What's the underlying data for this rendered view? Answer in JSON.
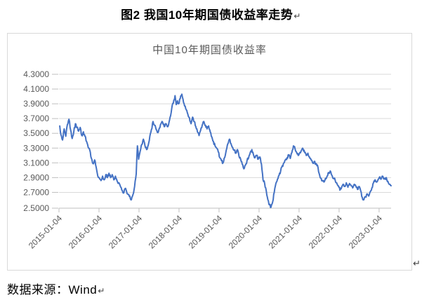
{
  "page": {
    "title": "图2 我国10年期国债收益率走势",
    "paragraph_mark": "↵",
    "source_label": "数据来源：Wind"
  },
  "chart_style": {
    "line_color": "#4472C4",
    "grid_color": "#D9D9D9",
    "axis_color": "#BFBFBF",
    "tick_label_color": "#595959",
    "title_color": "#595959",
    "frame_border_color": "#D9D9D9"
  },
  "chart_data": {
    "type": "line",
    "title": "中国10年期国债收益率",
    "legend": "none",
    "grid": true,
    "ylim": [
      2.5,
      4.3
    ],
    "xlim_years": [
      2015.0,
      2023.3
    ],
    "y_ticks": [
      4.3,
      4.1,
      3.9,
      3.7,
      3.5,
      3.3,
      3.1,
      2.9,
      2.7,
      2.5
    ],
    "y_tick_labels": [
      "4.3000",
      "4.1000",
      "3.9000",
      "3.7000",
      "3.5000",
      "3.3000",
      "3.1000",
      "2.9000",
      "2.7000",
      "2.5000"
    ],
    "x_tick_years": [
      2015,
      2016,
      2017,
      2018,
      2019,
      2020,
      2021,
      2022,
      2023
    ],
    "x_tick_labels": [
      "2015-01-04",
      "2016-01-04",
      "2017-01-04",
      "2018-01-04",
      "2019-01-04",
      "2020-01-04",
      "2021-01-04",
      "2022-01-04",
      "2023-01-04"
    ],
    "noise_amplitude": 0.04,
    "series": [
      {
        "name": "中国10年期国债收益率",
        "points": [
          [
            2015.02,
            3.6
          ],
          [
            2015.05,
            3.48
          ],
          [
            2015.09,
            3.41
          ],
          [
            2015.13,
            3.56
          ],
          [
            2015.17,
            3.46
          ],
          [
            2015.21,
            3.62
          ],
          [
            2015.25,
            3.69
          ],
          [
            2015.29,
            3.55
          ],
          [
            2015.33,
            3.43
          ],
          [
            2015.37,
            3.52
          ],
          [
            2015.41,
            3.63
          ],
          [
            2015.45,
            3.58
          ],
          [
            2015.49,
            3.53
          ],
          [
            2015.53,
            3.58
          ],
          [
            2015.57,
            3.47
          ],
          [
            2015.61,
            3.52
          ],
          [
            2015.65,
            3.46
          ],
          [
            2015.69,
            3.39
          ],
          [
            2015.73,
            3.31
          ],
          [
            2015.77,
            3.27
          ],
          [
            2015.81,
            3.16
          ],
          [
            2015.85,
            3.09
          ],
          [
            2015.89,
            3.14
          ],
          [
            2015.93,
            3.04
          ],
          [
            2015.97,
            2.92
          ],
          [
            2016.01,
            2.89
          ],
          [
            2016.05,
            2.86
          ],
          [
            2016.09,
            2.92
          ],
          [
            2016.13,
            2.87
          ],
          [
            2016.17,
            2.94
          ],
          [
            2016.21,
            2.9
          ],
          [
            2016.25,
            2.96
          ],
          [
            2016.29,
            2.9
          ],
          [
            2016.33,
            2.94
          ],
          [
            2016.37,
            2.87
          ],
          [
            2016.41,
            2.92
          ],
          [
            2016.45,
            2.86
          ],
          [
            2016.49,
            2.83
          ],
          [
            2016.53,
            2.79
          ],
          [
            2016.57,
            2.73
          ],
          [
            2016.61,
            2.69
          ],
          [
            2016.65,
            2.75
          ],
          [
            2016.69,
            2.71
          ],
          [
            2016.73,
            2.67
          ],
          [
            2016.77,
            2.65
          ],
          [
            2016.81,
            2.6
          ],
          [
            2016.85,
            2.67
          ],
          [
            2016.89,
            2.78
          ],
          [
            2016.93,
            2.95
          ],
          [
            2016.96,
            3.33
          ],
          [
            2016.99,
            3.15
          ],
          [
            2017.03,
            3.26
          ],
          [
            2017.07,
            3.35
          ],
          [
            2017.11,
            3.42
          ],
          [
            2017.15,
            3.33
          ],
          [
            2017.19,
            3.28
          ],
          [
            2017.23,
            3.34
          ],
          [
            2017.27,
            3.46
          ],
          [
            2017.31,
            3.55
          ],
          [
            2017.35,
            3.66
          ],
          [
            2017.39,
            3.61
          ],
          [
            2017.43,
            3.55
          ],
          [
            2017.47,
            3.51
          ],
          [
            2017.51,
            3.57
          ],
          [
            2017.55,
            3.63
          ],
          [
            2017.59,
            3.65
          ],
          [
            2017.63,
            3.59
          ],
          [
            2017.67,
            3.63
          ],
          [
            2017.71,
            3.59
          ],
          [
            2017.75,
            3.65
          ],
          [
            2017.79,
            3.74
          ],
          [
            2017.83,
            3.88
          ],
          [
            2017.87,
            3.95
          ],
          [
            2017.9,
            4.01
          ],
          [
            2017.93,
            3.89
          ],
          [
            2017.96,
            3.94
          ],
          [
            2017.99,
            3.9
          ],
          [
            2018.03,
            3.97
          ],
          [
            2018.07,
            4.03
          ],
          [
            2018.1,
            3.96
          ],
          [
            2018.14,
            3.87
          ],
          [
            2018.18,
            3.82
          ],
          [
            2018.22,
            3.76
          ],
          [
            2018.26,
            3.71
          ],
          [
            2018.3,
            3.63
          ],
          [
            2018.34,
            3.72
          ],
          [
            2018.38,
            3.66
          ],
          [
            2018.42,
            3.59
          ],
          [
            2018.46,
            3.52
          ],
          [
            2018.5,
            3.47
          ],
          [
            2018.54,
            3.54
          ],
          [
            2018.58,
            3.61
          ],
          [
            2018.62,
            3.66
          ],
          [
            2018.66,
            3.61
          ],
          [
            2018.7,
            3.56
          ],
          [
            2018.74,
            3.6
          ],
          [
            2018.78,
            3.52
          ],
          [
            2018.82,
            3.45
          ],
          [
            2018.86,
            3.39
          ],
          [
            2018.9,
            3.33
          ],
          [
            2018.94,
            3.3
          ],
          [
            2018.98,
            3.25
          ],
          [
            2019.02,
            3.17
          ],
          [
            2019.06,
            3.13
          ],
          [
            2019.1,
            3.1
          ],
          [
            2019.14,
            3.17
          ],
          [
            2019.18,
            3.27
          ],
          [
            2019.22,
            3.36
          ],
          [
            2019.26,
            3.42
          ],
          [
            2019.3,
            3.36
          ],
          [
            2019.34,
            3.31
          ],
          [
            2019.38,
            3.27
          ],
          [
            2019.42,
            3.23
          ],
          [
            2019.46,
            3.28
          ],
          [
            2019.5,
            3.19
          ],
          [
            2019.54,
            3.15
          ],
          [
            2019.58,
            3.08
          ],
          [
            2019.62,
            3.02
          ],
          [
            2019.66,
            3.07
          ],
          [
            2019.7,
            3.13
          ],
          [
            2019.74,
            3.17
          ],
          [
            2019.78,
            3.24
          ],
          [
            2019.82,
            3.28
          ],
          [
            2019.86,
            3.21
          ],
          [
            2019.9,
            3.17
          ],
          [
            2019.94,
            3.2
          ],
          [
            2019.98,
            3.15
          ],
          [
            2020.02,
            3.18
          ],
          [
            2020.06,
            3.08
          ],
          [
            2020.1,
            2.87
          ],
          [
            2020.14,
            2.82
          ],
          [
            2020.18,
            2.72
          ],
          [
            2020.22,
            2.6
          ],
          [
            2020.26,
            2.53
          ],
          [
            2020.3,
            2.5
          ],
          [
            2020.34,
            2.57
          ],
          [
            2020.38,
            2.7
          ],
          [
            2020.42,
            2.82
          ],
          [
            2020.46,
            2.88
          ],
          [
            2020.5,
            2.93
          ],
          [
            2020.54,
            2.99
          ],
          [
            2020.58,
            3.06
          ],
          [
            2020.62,
            3.1
          ],
          [
            2020.66,
            3.14
          ],
          [
            2020.7,
            3.17
          ],
          [
            2020.74,
            3.21
          ],
          [
            2020.78,
            3.16
          ],
          [
            2020.82,
            3.24
          ],
          [
            2020.86,
            3.33
          ],
          [
            2020.9,
            3.29
          ],
          [
            2020.94,
            3.24
          ],
          [
            2020.98,
            3.2
          ],
          [
            2021.02,
            3.24
          ],
          [
            2021.06,
            3.27
          ],
          [
            2021.1,
            3.29
          ],
          [
            2021.14,
            3.24
          ],
          [
            2021.18,
            3.2
          ],
          [
            2021.22,
            3.23
          ],
          [
            2021.26,
            3.18
          ],
          [
            2021.3,
            3.14
          ],
          [
            2021.34,
            3.1
          ],
          [
            2021.38,
            3.12
          ],
          [
            2021.42,
            3.09
          ],
          [
            2021.46,
            3.07
          ],
          [
            2021.5,
            2.96
          ],
          [
            2021.54,
            2.89
          ],
          [
            2021.58,
            2.86
          ],
          [
            2021.62,
            2.84
          ],
          [
            2021.66,
            2.89
          ],
          [
            2021.7,
            2.92
          ],
          [
            2021.74,
            2.97
          ],
          [
            2021.78,
            2.99
          ],
          [
            2021.82,
            2.93
          ],
          [
            2021.86,
            2.89
          ],
          [
            2021.9,
            2.87
          ],
          [
            2021.94,
            2.83
          ],
          [
            2021.98,
            2.79
          ],
          [
            2022.02,
            2.73
          ],
          [
            2022.06,
            2.76
          ],
          [
            2022.1,
            2.81
          ],
          [
            2022.14,
            2.78
          ],
          [
            2022.18,
            2.83
          ],
          [
            2022.22,
            2.77
          ],
          [
            2022.26,
            2.82
          ],
          [
            2022.3,
            2.79
          ],
          [
            2022.34,
            2.76
          ],
          [
            2022.38,
            2.81
          ],
          [
            2022.42,
            2.78
          ],
          [
            2022.46,
            2.74
          ],
          [
            2022.5,
            2.78
          ],
          [
            2022.54,
            2.72
          ],
          [
            2022.58,
            2.63
          ],
          [
            2022.62,
            2.6
          ],
          [
            2022.66,
            2.64
          ],
          [
            2022.7,
            2.68
          ],
          [
            2022.74,
            2.65
          ],
          [
            2022.78,
            2.71
          ],
          [
            2022.82,
            2.76
          ],
          [
            2022.86,
            2.83
          ],
          [
            2022.9,
            2.87
          ],
          [
            2022.94,
            2.84
          ],
          [
            2022.98,
            2.88
          ],
          [
            2023.02,
            2.91
          ],
          [
            2023.06,
            2.89
          ],
          [
            2023.1,
            2.91
          ],
          [
            2023.14,
            2.88
          ],
          [
            2023.18,
            2.9
          ],
          [
            2023.22,
            2.85
          ],
          [
            2023.26,
            2.81
          ],
          [
            2023.3,
            2.79
          ]
        ]
      }
    ]
  }
}
